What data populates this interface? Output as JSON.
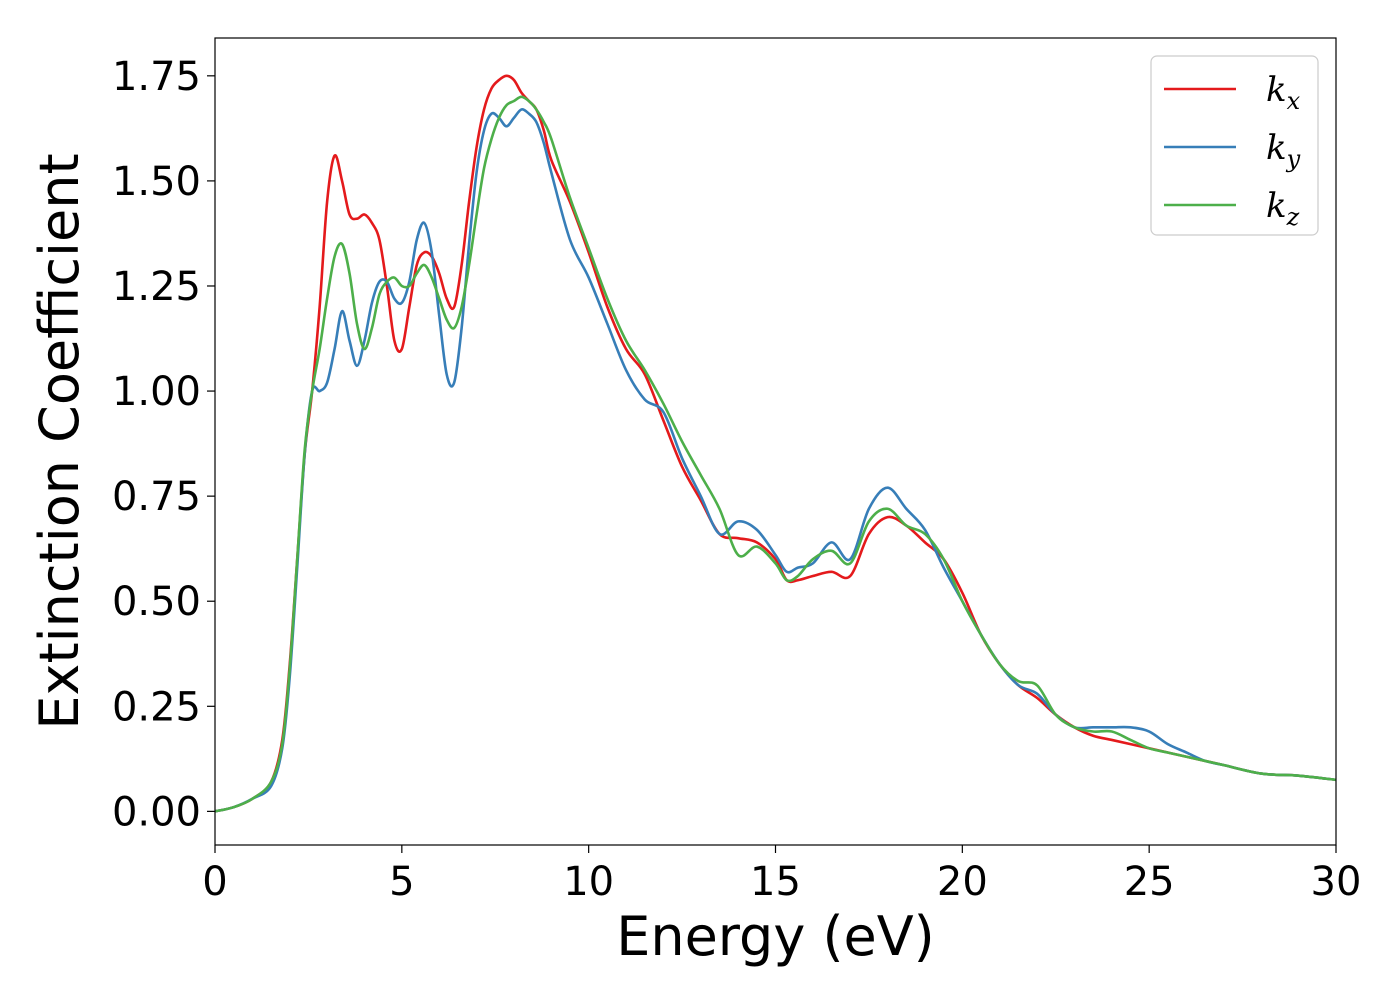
{
  "chart_data": {
    "type": "line",
    "title": "",
    "xlabel": "Energy (eV)",
    "ylabel": "Extinction Coefficient",
    "xlim": [
      0,
      30
    ],
    "ylim": [
      -0.08,
      1.84
    ],
    "xticks": [
      0,
      5,
      10,
      15,
      20,
      25,
      30
    ],
    "xtick_labels": [
      "0",
      "5",
      "10",
      "15",
      "20",
      "25",
      "30"
    ],
    "yticks": [
      0.0,
      0.25,
      0.5,
      0.75,
      1.0,
      1.25,
      1.5,
      1.75
    ],
    "ytick_labels": [
      "0.00",
      "0.25",
      "0.50",
      "0.75",
      "1.00",
      "1.25",
      "1.50",
      "1.75"
    ],
    "grid": false,
    "legend_position": "top-right",
    "series": [
      {
        "name": "k_x",
        "label_main": "k",
        "label_sub": "x",
        "color": "#e41a1c",
        "x": [
          0,
          0.5,
          1.0,
          1.5,
          1.8,
          2.0,
          2.2,
          2.4,
          2.6,
          2.8,
          3.0,
          3.2,
          3.4,
          3.6,
          3.8,
          4.0,
          4.2,
          4.4,
          4.6,
          4.8,
          5.0,
          5.2,
          5.4,
          5.6,
          5.8,
          6.0,
          6.2,
          6.4,
          6.6,
          6.8,
          7.0,
          7.2,
          7.4,
          7.6,
          7.8,
          8.0,
          8.2,
          8.4,
          8.6,
          8.8,
          9.0,
          9.5,
          10.0,
          10.5,
          11.0,
          11.5,
          12.0,
          12.5,
          13.0,
          13.5,
          14.0,
          14.5,
          15.0,
          15.3,
          15.6,
          16.0,
          16.5,
          17.0,
          17.5,
          18.0,
          18.5,
          19.0,
          19.5,
          20.0,
          20.5,
          21.0,
          21.5,
          22.0,
          22.5,
          23.0,
          23.5,
          24.0,
          24.5,
          25.0,
          25.5,
          26.0,
          26.5,
          27.0,
          28.0,
          29.0,
          30.0
        ],
        "y": [
          0.0,
          0.01,
          0.03,
          0.07,
          0.17,
          0.35,
          0.6,
          0.85,
          1.0,
          1.2,
          1.45,
          1.56,
          1.5,
          1.42,
          1.41,
          1.42,
          1.4,
          1.36,
          1.25,
          1.12,
          1.1,
          1.2,
          1.3,
          1.33,
          1.32,
          1.28,
          1.22,
          1.2,
          1.3,
          1.45,
          1.58,
          1.67,
          1.72,
          1.74,
          1.75,
          1.74,
          1.71,
          1.69,
          1.67,
          1.62,
          1.55,
          1.45,
          1.33,
          1.2,
          1.1,
          1.04,
          0.93,
          0.82,
          0.74,
          0.66,
          0.65,
          0.64,
          0.6,
          0.55,
          0.55,
          0.56,
          0.57,
          0.56,
          0.66,
          0.7,
          0.68,
          0.64,
          0.6,
          0.52,
          0.42,
          0.35,
          0.3,
          0.27,
          0.23,
          0.2,
          0.18,
          0.17,
          0.16,
          0.15,
          0.14,
          0.13,
          0.12,
          0.11,
          0.09,
          0.085,
          0.075
        ]
      },
      {
        "name": "k_y",
        "label_main": "k",
        "label_sub": "y",
        "color": "#377eb8",
        "x": [
          0,
          0.5,
          1.0,
          1.5,
          1.8,
          2.0,
          2.2,
          2.4,
          2.6,
          2.8,
          3.0,
          3.2,
          3.4,
          3.6,
          3.8,
          4.0,
          4.2,
          4.4,
          4.6,
          4.8,
          5.0,
          5.2,
          5.4,
          5.6,
          5.8,
          6.0,
          6.2,
          6.4,
          6.6,
          6.8,
          7.0,
          7.2,
          7.4,
          7.6,
          7.8,
          8.0,
          8.2,
          8.4,
          8.6,
          8.8,
          9.0,
          9.5,
          10.0,
          10.5,
          11.0,
          11.5,
          12.0,
          12.5,
          13.0,
          13.5,
          14.0,
          14.5,
          15.0,
          15.3,
          15.6,
          16.0,
          16.5,
          17.0,
          17.5,
          18.0,
          18.5,
          19.0,
          19.5,
          20.0,
          20.5,
          21.0,
          21.5,
          22.0,
          22.5,
          23.0,
          23.5,
          24.0,
          24.5,
          25.0,
          25.5,
          26.0,
          26.5,
          27.0,
          28.0,
          29.0,
          30.0
        ],
        "y": [
          0.0,
          0.01,
          0.03,
          0.06,
          0.15,
          0.32,
          0.58,
          0.85,
          1.0,
          1.0,
          1.02,
          1.1,
          1.19,
          1.12,
          1.06,
          1.12,
          1.21,
          1.26,
          1.26,
          1.22,
          1.21,
          1.26,
          1.36,
          1.4,
          1.33,
          1.18,
          1.04,
          1.02,
          1.15,
          1.35,
          1.52,
          1.62,
          1.66,
          1.65,
          1.63,
          1.65,
          1.67,
          1.66,
          1.64,
          1.59,
          1.52,
          1.36,
          1.27,
          1.16,
          1.05,
          0.98,
          0.95,
          0.84,
          0.75,
          0.66,
          0.69,
          0.67,
          0.61,
          0.57,
          0.58,
          0.59,
          0.64,
          0.6,
          0.72,
          0.77,
          0.72,
          0.67,
          0.58,
          0.5,
          0.42,
          0.35,
          0.3,
          0.28,
          0.23,
          0.2,
          0.2,
          0.2,
          0.2,
          0.19,
          0.16,
          0.14,
          0.12,
          0.11,
          0.09,
          0.085,
          0.075
        ]
      },
      {
        "name": "k_z",
        "label_main": "k",
        "label_sub": "z",
        "color": "#4daf4a",
        "x": [
          0,
          0.5,
          1.0,
          1.5,
          1.8,
          2.0,
          2.2,
          2.4,
          2.6,
          2.8,
          3.0,
          3.2,
          3.4,
          3.6,
          3.8,
          4.0,
          4.2,
          4.4,
          4.6,
          4.8,
          5.0,
          5.2,
          5.4,
          5.6,
          5.8,
          6.0,
          6.2,
          6.4,
          6.6,
          6.8,
          7.0,
          7.2,
          7.4,
          7.6,
          7.8,
          8.0,
          8.2,
          8.4,
          8.6,
          8.8,
          9.0,
          9.5,
          10.0,
          10.5,
          11.0,
          11.5,
          12.0,
          12.5,
          13.0,
          13.5,
          14.0,
          14.5,
          15.0,
          15.3,
          15.6,
          16.0,
          16.5,
          17.0,
          17.5,
          18.0,
          18.5,
          19.0,
          19.5,
          20.0,
          20.5,
          21.0,
          21.5,
          22.0,
          22.5,
          23.0,
          23.5,
          24.0,
          24.5,
          25.0,
          25.5,
          26.0,
          26.5,
          27.0,
          28.0,
          29.0,
          30.0
        ],
        "y": [
          0.0,
          0.01,
          0.03,
          0.07,
          0.16,
          0.34,
          0.6,
          0.86,
          1.0,
          1.1,
          1.22,
          1.32,
          1.35,
          1.28,
          1.16,
          1.1,
          1.15,
          1.23,
          1.26,
          1.27,
          1.25,
          1.25,
          1.28,
          1.3,
          1.27,
          1.22,
          1.17,
          1.15,
          1.2,
          1.3,
          1.42,
          1.53,
          1.6,
          1.65,
          1.68,
          1.69,
          1.7,
          1.69,
          1.67,
          1.64,
          1.6,
          1.46,
          1.34,
          1.22,
          1.12,
          1.05,
          0.97,
          0.88,
          0.8,
          0.72,
          0.61,
          0.63,
          0.59,
          0.55,
          0.56,
          0.6,
          0.62,
          0.59,
          0.69,
          0.72,
          0.68,
          0.66,
          0.6,
          0.5,
          0.42,
          0.35,
          0.31,
          0.3,
          0.23,
          0.2,
          0.19,
          0.19,
          0.17,
          0.15,
          0.14,
          0.13,
          0.12,
          0.11,
          0.09,
          0.085,
          0.075
        ]
      }
    ]
  }
}
